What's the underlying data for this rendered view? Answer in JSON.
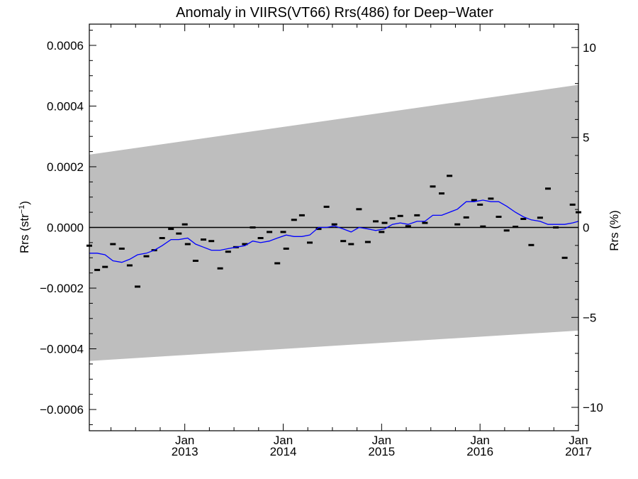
{
  "chart_data": {
    "type": "scatter",
    "title": "Anomaly in VIIRS(VT66) Rrs(486) for Deep−Water",
    "ylabel_left_main": "Rrs (str",
    "ylabel_left_sup": "−1",
    "ylabel_left_end": ")",
    "ylabel_right": "Rrs (%)",
    "x_ticks": [
      {
        "month": "Jan",
        "year": "2013"
      },
      {
        "month": "Jan",
        "year": "2014"
      },
      {
        "month": "Jan",
        "year": "2015"
      },
      {
        "month": "Jan",
        "year": "2016"
      },
      {
        "month": "Jan",
        "year": "2017"
      }
    ],
    "xlim": [
      2012.03,
      2017.0
    ],
    "ylim": [
      -0.00067,
      0.00067
    ],
    "y_ticks": [
      "0.0006",
      "0.0004",
      "0.0002",
      "0.0000",
      "−0.0002",
      "−0.0004",
      "−0.0006"
    ],
    "y_tick_values": [
      0.0006,
      0.0004,
      0.0002,
      0.0,
      -0.0002,
      -0.0004,
      -0.0006
    ],
    "y2_ticks": [
      "10",
      "5",
      "0",
      "−5",
      "−10"
    ],
    "y2_tick_values": [
      10,
      5,
      0,
      -5,
      -10
    ],
    "y2lim": [
      -11.3,
      11.3
    ],
    "series": [
      {
        "kind": "points",
        "color": "#000000",
        "x": [
          2012.03,
          2012.11,
          2012.19,
          2012.27,
          2012.36,
          2012.44,
          2012.52,
          2012.61,
          2012.69,
          2012.77,
          2012.86,
          2012.94,
          2013.0,
          2013.03,
          2013.11,
          2013.19,
          2013.27,
          2013.36,
          2013.44,
          2013.52,
          2013.61,
          2013.69,
          2013.77,
          2013.86,
          2013.94,
          2014.0,
          2014.03,
          2014.11,
          2014.19,
          2014.27,
          2014.36,
          2014.44,
          2014.52,
          2014.61,
          2014.69,
          2014.77,
          2014.86,
          2014.94,
          2015.0,
          2015.03,
          2015.11,
          2015.19,
          2015.27,
          2015.36,
          2015.44,
          2015.52,
          2015.61,
          2015.69,
          2015.77,
          2015.86,
          2015.94,
          2016.0,
          2016.03,
          2016.11,
          2016.19,
          2016.27,
          2016.36,
          2016.44,
          2016.52,
          2016.61,
          2016.69,
          2016.77,
          2016.86,
          2016.94,
          2017.0
        ],
        "y": [
          -6e-05,
          -0.00014,
          -0.00013,
          -5.5e-05,
          -7e-05,
          -0.000125,
          -0.000195,
          -9.5e-05,
          -7.5e-05,
          -3.5e-05,
          -5e-06,
          -2e-05,
          1e-05,
          -5.5e-05,
          -0.00011,
          -4e-05,
          -4.5e-05,
          -0.000135,
          -8e-05,
          -6.5e-05,
          -5.5e-05,
          0.0,
          -3.5e-05,
          -1.5e-05,
          -0.000118,
          -1.5e-05,
          -7e-05,
          2.5e-05,
          4e-05,
          -5e-05,
          -5e-06,
          6.8e-05,
          1e-05,
          -4.5e-05,
          -5.5e-05,
          6e-05,
          -4.8e-05,
          2e-05,
          -1.5e-05,
          1.5e-05,
          3e-05,
          3.8e-05,
          4e-06,
          4e-05,
          1.5e-05,
          0.000135,
          0.000112,
          0.00017,
          1e-05,
          3.3e-05,
          9e-05,
          7.5e-05,
          3e-06,
          9.5e-05,
          3.5e-05,
          -1e-05,
          2e-06,
          2.8e-05,
          -5.8e-05,
          3.2e-05,
          0.000128,
          0.0,
          -0.0001,
          7.5e-05,
          5e-05
        ]
      },
      {
        "kind": "line",
        "color": "#0000ff",
        "x": [
          2012.03,
          2012.11,
          2012.19,
          2012.27,
          2012.36,
          2012.44,
          2012.52,
          2012.61,
          2012.69,
          2012.77,
          2012.86,
          2012.94,
          2013.03,
          2013.11,
          2013.19,
          2013.27,
          2013.36,
          2013.44,
          2013.52,
          2013.61,
          2013.69,
          2013.77,
          2013.86,
          2013.94,
          2014.03,
          2014.11,
          2014.19,
          2014.27,
          2014.36,
          2014.44,
          2014.52,
          2014.61,
          2014.69,
          2014.77,
          2014.86,
          2014.94,
          2015.03,
          2015.11,
          2015.19,
          2015.27,
          2015.36,
          2015.44,
          2015.52,
          2015.61,
          2015.69,
          2015.77,
          2015.86,
          2015.94,
          2016.03,
          2016.11,
          2016.19,
          2016.27,
          2016.36,
          2016.44,
          2016.52,
          2016.61,
          2016.69,
          2016.77,
          2016.86,
          2016.94,
          2017.0
        ],
        "y": [
          -8.5e-05,
          -8.5e-05,
          -9e-05,
          -0.00011,
          -0.000115,
          -0.000105,
          -9e-05,
          -8.5e-05,
          -7.5e-05,
          -6e-05,
          -4e-05,
          -4e-05,
          -3.5e-05,
          -5.5e-05,
          -6.5e-05,
          -7.5e-05,
          -7.5e-05,
          -7e-05,
          -6.5e-05,
          -6e-05,
          -4.5e-05,
          -5e-05,
          -4.5e-05,
          -3.5e-05,
          -2.5e-05,
          -3e-05,
          -3e-05,
          -2.5e-05,
          0.0,
          0.0,
          5e-06,
          -5e-06,
          -1.5e-05,
          0.0,
          -5e-06,
          -1e-05,
          -5e-06,
          1e-05,
          1.5e-05,
          1e-05,
          2e-05,
          2e-05,
          4e-05,
          4e-05,
          5e-05,
          6e-05,
          8.5e-05,
          8.5e-05,
          9e-05,
          8.5e-05,
          8.5e-05,
          7e-05,
          5e-05,
          3.5e-05,
          2.5e-05,
          2e-05,
          1e-05,
          1e-05,
          1e-05,
          1.5e-05,
          2e-05
        ]
      }
    ],
    "band": {
      "color": "#bebebe",
      "upper_start": 0.00024,
      "upper_end": 0.00047,
      "lower_start": -0.00044,
      "lower_end": -0.00034
    },
    "zero_line": true,
    "grid": false,
    "legend": "none"
  }
}
